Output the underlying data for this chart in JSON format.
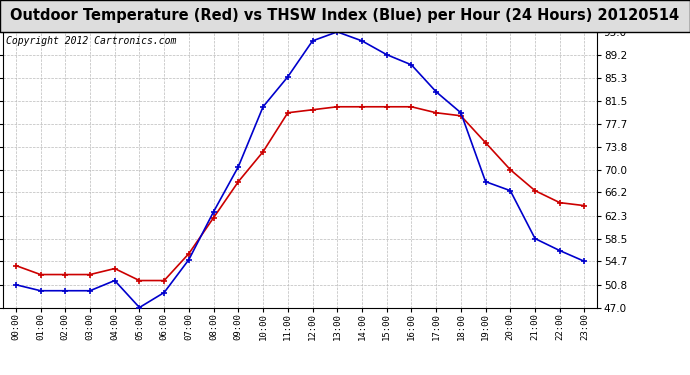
{
  "title": "Outdoor Temperature (Red) vs THSW Index (Blue) per Hour (24 Hours) 20120514",
  "copyright": "Copyright 2012 Cartronics.com",
  "x_labels": [
    "00:00",
    "01:00",
    "02:00",
    "03:00",
    "04:00",
    "05:00",
    "06:00",
    "07:00",
    "08:00",
    "09:00",
    "10:00",
    "11:00",
    "12:00",
    "13:00",
    "14:00",
    "15:00",
    "16:00",
    "17:00",
    "18:00",
    "19:00",
    "20:00",
    "21:00",
    "22:00",
    "23:00"
  ],
  "red_temp": [
    54.0,
    52.5,
    52.5,
    52.5,
    53.5,
    51.5,
    51.5,
    56.0,
    62.0,
    68.0,
    73.0,
    79.5,
    80.0,
    80.5,
    80.5,
    80.5,
    80.5,
    79.5,
    79.0,
    74.5,
    70.0,
    66.5,
    64.5,
    64.0
  ],
  "blue_thsw": [
    50.8,
    49.8,
    49.8,
    49.8,
    51.5,
    47.0,
    49.5,
    55.0,
    63.0,
    70.5,
    80.5,
    85.5,
    91.5,
    93.0,
    91.5,
    89.2,
    87.5,
    83.0,
    79.5,
    68.0,
    66.5,
    58.5,
    56.5,
    54.7
  ],
  "ylim": [
    47.0,
    93.0
  ],
  "yticks": [
    47.0,
    50.8,
    54.7,
    58.5,
    62.3,
    66.2,
    70.0,
    73.8,
    77.7,
    81.5,
    85.3,
    89.2,
    93.0
  ],
  "red_color": "#cc0000",
  "blue_color": "#0000cc",
  "bg_color": "#ffffff",
  "plot_bg": "#ffffff",
  "grid_color": "#bbbbbb",
  "title_fontsize": 10.5,
  "copyright_fontsize": 7,
  "title_bg": "#dddddd"
}
